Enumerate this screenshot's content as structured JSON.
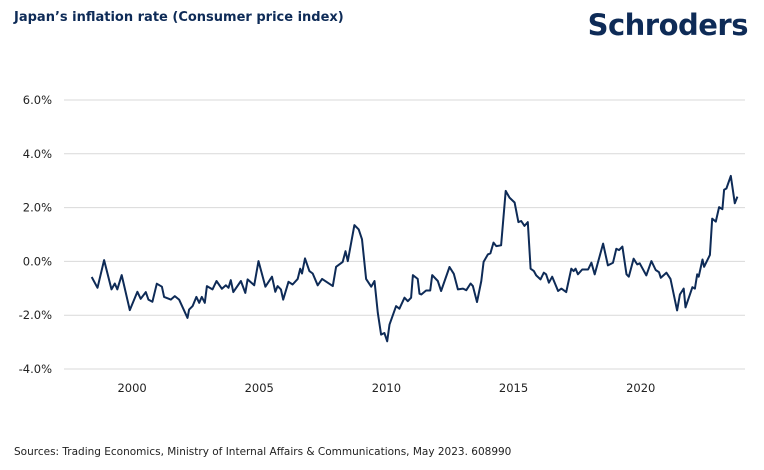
{
  "header": {
    "title": "Japan’s inflation rate (Consumer price index)",
    "logo": "Schroders"
  },
  "footer": {
    "source": "Sources: Trading Economics, Ministry of Internal Affairs & Communications, May 2023. 608990"
  },
  "colors": {
    "line": "#0e2b57",
    "grid": "#d9d9d9",
    "title": "#0e2b57"
  },
  "chart_data": {
    "type": "line",
    "title": "Japan’s inflation rate (Consumer price index)",
    "xlabel": "",
    "ylabel": "",
    "xlim": [
      1996.3,
      2024.1
    ],
    "ylim": [
      -4,
      6
    ],
    "grid": "horizontal",
    "yticks": [
      6,
      4,
      2,
      0,
      -2,
      -4
    ],
    "ytick_labels": [
      "6.0%",
      "4.0%",
      "2.0%",
      "0.0%",
      "-2.0%",
      "-4.0%"
    ],
    "xticks": [
      2000,
      2005,
      2010,
      2015,
      2020
    ],
    "xtick_labels": [
      "2000",
      "2005",
      "2010",
      "2015",
      "2020"
    ],
    "series": [
      {
        "x": [
          1998.41,
          1998.64,
          1998.9,
          1999.19,
          1999.32,
          1999.42,
          1999.59,
          1999.91,
          2000.21,
          2000.34,
          2000.54,
          2000.64,
          2000.8,
          2000.97,
          2001.17,
          2001.26,
          2001.52,
          2001.68,
          2001.85,
          2002.18,
          2002.24,
          2002.38,
          2002.53,
          2002.64,
          2002.74,
          2002.86,
          2002.94,
          2003.16,
          2003.32,
          2003.53,
          2003.69,
          2003.79,
          2003.88,
          2003.98,
          2004.28,
          2004.45,
          2004.54,
          2004.8,
          2004.97,
          2005.24,
          2005.5,
          2005.63,
          2005.72,
          2005.85,
          2005.94,
          2006.15,
          2006.31,
          2006.51,
          2006.61,
          2006.68,
          2006.8,
          2006.97,
          2007.1,
          2007.3,
          2007.47,
          2007.89,
          2008.02,
          2008.28,
          2008.39,
          2008.48,
          2008.74,
          2008.91,
          2009.04,
          2009.2,
          2009.4,
          2009.53,
          2009.66,
          2009.79,
          2009.92,
          2010.03,
          2010.12,
          2010.38,
          2010.51,
          2010.71,
          2010.84,
          2010.97,
          2011.04,
          2011.23,
          2011.3,
          2011.37,
          2011.56,
          2011.72,
          2011.8,
          2012.02,
          2012.15,
          2012.48,
          2012.65,
          2012.81,
          2013.01,
          2013.14,
          2013.31,
          2013.4,
          2013.56,
          2013.73,
          2013.82,
          2013.99,
          2014.09,
          2014.21,
          2014.32,
          2014.51,
          2014.69,
          2014.84,
          2015.04,
          2015.19,
          2015.3,
          2015.43,
          2015.56,
          2015.67,
          2015.8,
          2015.89,
          2016.06,
          2016.19,
          2016.28,
          2016.39,
          2016.52,
          2016.75,
          2016.88,
          2017.07,
          2017.27,
          2017.36,
          2017.44,
          2017.53,
          2017.7,
          2017.93,
          2018.06,
          2018.19,
          2018.52,
          2018.71,
          2018.91,
          2019.04,
          2019.15,
          2019.28,
          2019.44,
          2019.53,
          2019.72,
          2019.86,
          2019.96,
          2020.22,
          2020.42,
          2020.59,
          2020.72,
          2020.79,
          2021.01,
          2021.17,
          2021.43,
          2021.54,
          2021.69,
          2021.76,
          2022.03,
          2022.13,
          2022.22,
          2022.28,
          2022.43,
          2022.49,
          2022.72,
          2022.81,
          2022.95,
          2023.08,
          2023.21,
          2023.28,
          2023.37,
          2023.54,
          2023.7,
          2023.8
        ],
        "y": [
          -0.58,
          -0.98,
          0.05,
          -1.04,
          -0.82,
          -1.04,
          -0.51,
          -1.81,
          -1.13,
          -1.39,
          -1.14,
          -1.42,
          -1.5,
          -0.83,
          -0.94,
          -1.32,
          -1.42,
          -1.29,
          -1.42,
          -2.1,
          -1.79,
          -1.66,
          -1.32,
          -1.54,
          -1.32,
          -1.54,
          -0.92,
          -1.04,
          -0.73,
          -1.02,
          -0.89,
          -0.98,
          -0.7,
          -1.14,
          -0.73,
          -1.17,
          -0.67,
          -0.89,
          0.01,
          -0.94,
          -0.57,
          -1.13,
          -0.92,
          -1.04,
          -1.42,
          -0.76,
          -0.86,
          -0.65,
          -0.27,
          -0.45,
          0.11,
          -0.36,
          -0.45,
          -0.89,
          -0.65,
          -0.92,
          -0.2,
          -0.02,
          0.38,
          0.01,
          1.35,
          1.19,
          0.82,
          -0.65,
          -0.94,
          -0.73,
          -1.91,
          -2.72,
          -2.66,
          -2.97,
          -2.35,
          -1.66,
          -1.76,
          -1.35,
          -1.48,
          -1.35,
          -0.51,
          -0.65,
          -1.2,
          -1.23,
          -1.08,
          -1.08,
          -0.51,
          -0.73,
          -1.1,
          -0.21,
          -0.46,
          -1.04,
          -1.01,
          -1.07,
          -0.82,
          -0.92,
          -1.51,
          -0.73,
          -0.02,
          0.26,
          0.3,
          0.7,
          0.57,
          0.6,
          2.62,
          2.37,
          2.19,
          1.46,
          1.5,
          1.32,
          1.46,
          -0.27,
          -0.36,
          -0.52,
          -0.67,
          -0.42,
          -0.48,
          -0.79,
          -0.57,
          -1.1,
          -1.01,
          -1.14,
          -0.27,
          -0.36,
          -0.27,
          -0.48,
          -0.3,
          -0.3,
          -0.05,
          -0.48,
          0.66,
          -0.15,
          -0.05,
          0.47,
          0.42,
          0.55,
          -0.48,
          -0.57,
          0.1,
          -0.11,
          -0.07,
          -0.52,
          0.01,
          -0.32,
          -0.4,
          -0.61,
          -0.42,
          -0.65,
          -1.82,
          -1.23,
          -1.01,
          -1.71,
          -0.96,
          -1.01,
          -0.48,
          -0.57,
          0.07,
          -0.2,
          0.24,
          1.59,
          1.48,
          2.02,
          1.94,
          2.66,
          2.71,
          3.18,
          2.16,
          2.41
        ]
      }
    ]
  }
}
